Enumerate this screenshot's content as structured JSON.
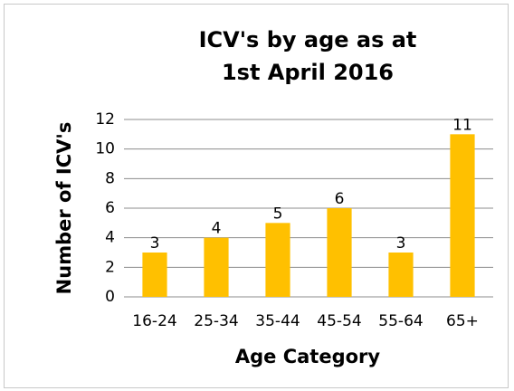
{
  "chart_data": {
    "type": "bar",
    "title": [
      "ICV's by age as at",
      "1st April 2016"
    ],
    "x_label": "Age Category",
    "y_label": "Number of ICV's",
    "categories": [
      "16-24",
      "25-34",
      "35-44",
      "45-54",
      "55-64",
      "65+"
    ],
    "values": [
      3,
      4,
      5,
      6,
      3,
      11
    ],
    "color": "#ffc000",
    "ylim": [
      0,
      12
    ],
    "yticks": [
      0,
      2,
      4,
      6,
      8,
      10,
      12
    ],
    "grid": true,
    "data_labels": true
  }
}
